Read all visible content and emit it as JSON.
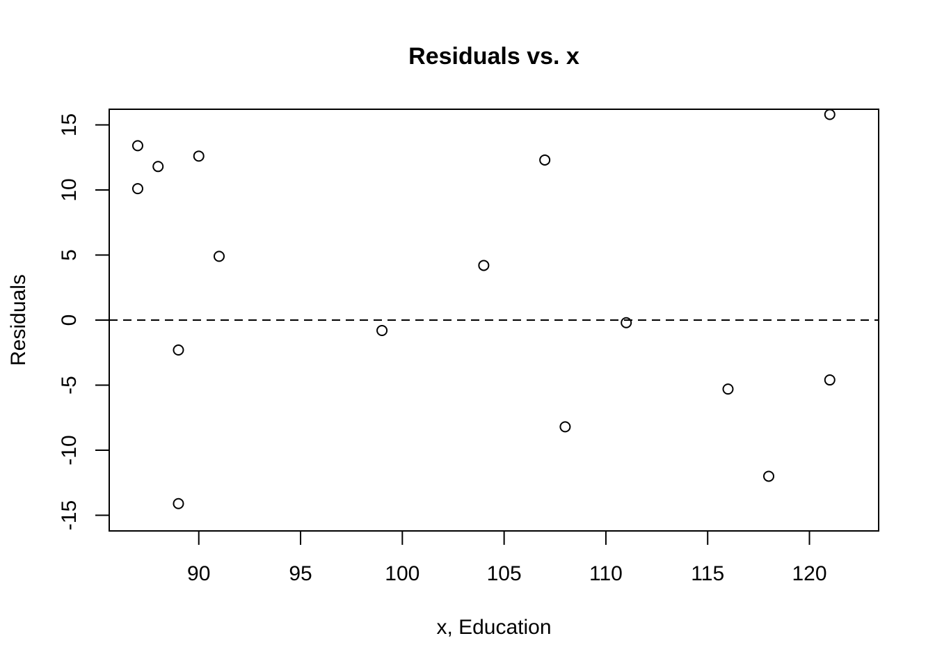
{
  "chart_data": {
    "type": "scatter",
    "title": "Residuals vs. x",
    "xlabel": "x, Education",
    "ylabel": "Residuals",
    "xlim": [
      85.6,
      123.4
    ],
    "ylim": [
      -16.2,
      16.2
    ],
    "x_ticks": [
      90,
      95,
      100,
      105,
      110,
      115,
      120
    ],
    "y_ticks": [
      -15,
      -10,
      -5,
      0,
      5,
      10,
      15
    ],
    "reference_line": {
      "y": 0,
      "style": "dashed"
    },
    "grid": false,
    "legend": "none",
    "marker": "open-circle",
    "series": [
      {
        "points": [
          {
            "x": 87,
            "y": 13.4
          },
          {
            "x": 87,
            "y": 10.1
          },
          {
            "x": 88,
            "y": 11.8
          },
          {
            "x": 89,
            "y": -2.3
          },
          {
            "x": 89,
            "y": -14.1
          },
          {
            "x": 90,
            "y": 12.6
          },
          {
            "x": 91,
            "y": 4.9
          },
          {
            "x": 99,
            "y": -0.8
          },
          {
            "x": 104,
            "y": 4.2
          },
          {
            "x": 107,
            "y": 12.3
          },
          {
            "x": 108,
            "y": -8.2
          },
          {
            "x": 111,
            "y": -0.2
          },
          {
            "x": 116,
            "y": -5.3
          },
          {
            "x": 118,
            "y": -12.0
          },
          {
            "x": 121,
            "y": 15.8
          },
          {
            "x": 121,
            "y": -4.6
          }
        ]
      }
    ]
  }
}
